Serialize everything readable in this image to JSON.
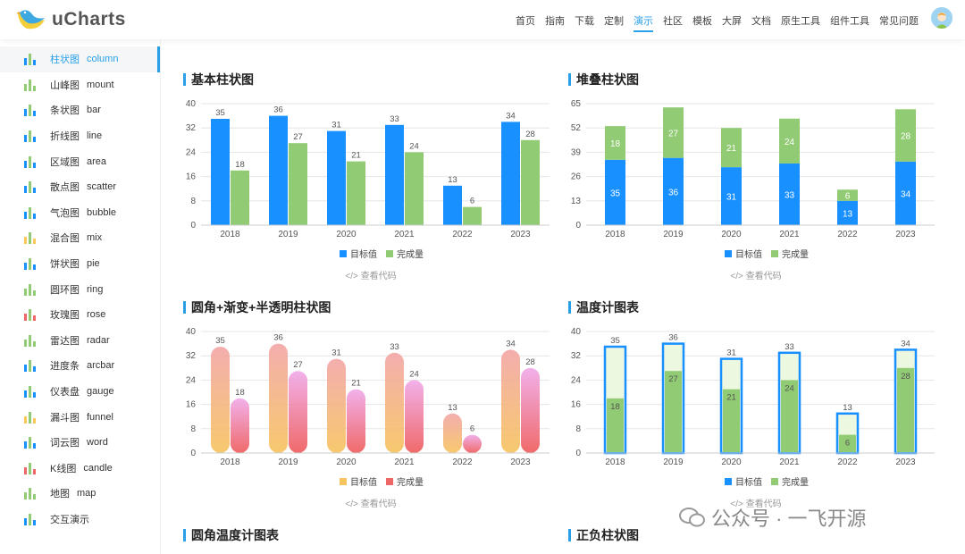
{
  "header": {
    "logo": "uCharts",
    "nav": [
      "首页",
      "指南",
      "下载",
      "定制",
      "演示",
      "社区",
      "模板",
      "大屏",
      "文档",
      "原生工具",
      "组件工具",
      "常见问题"
    ],
    "active_nav": 4
  },
  "sidebar": [
    {
      "cn": "柱状图",
      "en": "column",
      "icon": "column-icon",
      "color": "#1890FF"
    },
    {
      "cn": "山峰图",
      "en": "mount",
      "icon": "mount-icon",
      "color": "#91CB74"
    },
    {
      "cn": "条状图",
      "en": "bar",
      "icon": "bar-icon",
      "color": "#1890FF"
    },
    {
      "cn": "折线图",
      "en": "line",
      "icon": "line-icon",
      "color": "#1890FF"
    },
    {
      "cn": "区域图",
      "en": "area",
      "icon": "area-icon",
      "color": "#1890FF"
    },
    {
      "cn": "散点图",
      "en": "scatter",
      "icon": "scatter-icon",
      "color": "#1890FF"
    },
    {
      "cn": "气泡图",
      "en": "bubble",
      "icon": "bubble-icon",
      "color": "#1890FF"
    },
    {
      "cn": "混合图",
      "en": "mix",
      "icon": "mix-icon",
      "color": "#FAC858"
    },
    {
      "cn": "饼状图",
      "en": "pie",
      "icon": "pie-icon",
      "color": "#1890FF"
    },
    {
      "cn": "圆环图",
      "en": "ring",
      "icon": "ring-icon",
      "color": "#91CB74"
    },
    {
      "cn": "玫瑰图",
      "en": "rose",
      "icon": "rose-icon",
      "color": "#EE6666"
    },
    {
      "cn": "雷达图",
      "en": "radar",
      "icon": "radar-icon",
      "color": "#91CB74"
    },
    {
      "cn": "进度条",
      "en": "arcbar",
      "icon": "arcbar-icon",
      "color": "#1890FF"
    },
    {
      "cn": "仪表盘",
      "en": "gauge",
      "icon": "gauge-icon",
      "color": "#1890FF"
    },
    {
      "cn": "漏斗图",
      "en": "funnel",
      "icon": "funnel-icon",
      "color": "#FAC858"
    },
    {
      "cn": "词云图",
      "en": "word",
      "icon": "word-icon",
      "color": "#1890FF"
    },
    {
      "cn": "K线图",
      "en": "candle",
      "icon": "candle-icon",
      "color": "#EE6666"
    },
    {
      "cn": "地图",
      "en": "map",
      "icon": "map-icon",
      "color": "#91CB74"
    },
    {
      "cn": "交互演示",
      "en": "",
      "icon": "interact-icon",
      "color": "#1890FF"
    }
  ],
  "view_code": "</> 查看代码",
  "bottom_titles": [
    "圆角温度计图表",
    "正负柱状图"
  ],
  "watermark": "公众号 · 一飞开源",
  "chart_data": [
    {
      "title": "基本柱状图",
      "type": "bar",
      "style": "group",
      "categories": [
        "2018",
        "2019",
        "2020",
        "2021",
        "2022",
        "2023"
      ],
      "ylim": [
        0,
        40
      ],
      "yticks": [
        0,
        8,
        16,
        24,
        32,
        40
      ],
      "series": [
        {
          "name": "目标值",
          "values": [
            35,
            36,
            31,
            33,
            13,
            34
          ],
          "color": "#1890FF"
        },
        {
          "name": "完成量",
          "values": [
            18,
            27,
            21,
            24,
            6,
            28
          ],
          "color": "#91CB74"
        }
      ]
    },
    {
      "title": "堆叠柱状图",
      "type": "bar",
      "style": "stack",
      "categories": [
        "2018",
        "2019",
        "2020",
        "2021",
        "2022",
        "2023"
      ],
      "ylim": [
        0,
        65
      ],
      "yticks": [
        0,
        13,
        26,
        39,
        52,
        65
      ],
      "series": [
        {
          "name": "目标值",
          "values": [
            35,
            36,
            31,
            33,
            13,
            34
          ],
          "color": "#1890FF"
        },
        {
          "name": "完成量",
          "values": [
            18,
            27,
            21,
            24,
            6,
            28
          ],
          "color": "#91CB74"
        }
      ]
    },
    {
      "title": "圆角+渐变+半透明柱状图",
      "type": "bar",
      "style": "rounded",
      "categories": [
        "2018",
        "2019",
        "2020",
        "2021",
        "2022",
        "2023"
      ],
      "ylim": [
        0,
        40
      ],
      "yticks": [
        0,
        8,
        16,
        24,
        32,
        40
      ],
      "series": [
        {
          "name": "目标值",
          "values": [
            35,
            36,
            31,
            33,
            13,
            34
          ],
          "color": "#F6C35E"
        },
        {
          "name": "完成量",
          "values": [
            18,
            27,
            21,
            24,
            6,
            28
          ],
          "color": "#EE6666"
        }
      ]
    },
    {
      "title": "温度计图表",
      "type": "bar",
      "style": "meter",
      "categories": [
        "2018",
        "2019",
        "2020",
        "2021",
        "2022",
        "2023"
      ],
      "ylim": [
        0,
        40
      ],
      "yticks": [
        0,
        8,
        16,
        24,
        32,
        40
      ],
      "series": [
        {
          "name": "目标值",
          "values": [
            35,
            36,
            31,
            33,
            13,
            34
          ],
          "color": "#1890FF"
        },
        {
          "name": "完成量",
          "values": [
            18,
            27,
            21,
            24,
            6,
            28
          ],
          "color": "#91CB74"
        }
      ]
    }
  ]
}
